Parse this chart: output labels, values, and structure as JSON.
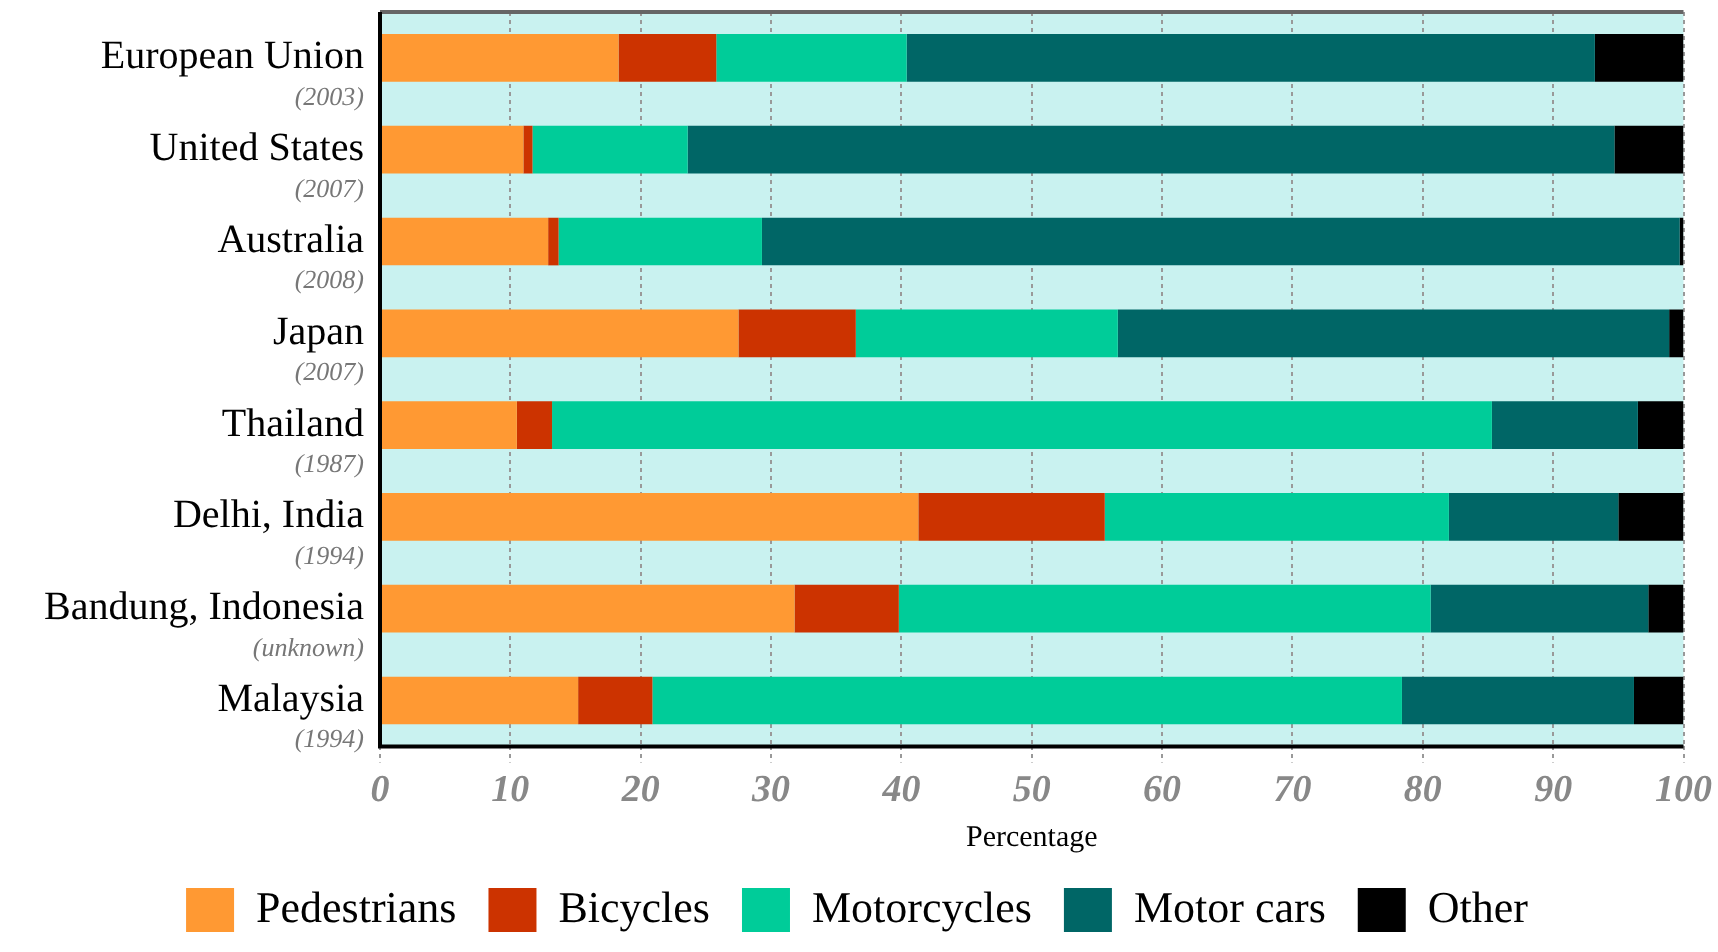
{
  "chart_data": {
    "type": "bar",
    "orientation": "horizontal",
    "stacked": true,
    "xlabel": "Percentage",
    "categories": [
      "European Union\n(2003)",
      "United States\n(2007)",
      "Australia\n(2008)",
      "Japan\n(2007)",
      "Thailand\n(1987)",
      "Delhi, India\n(1994)",
      "Bandung, Indonesia\n(unknown)",
      "Malaysia\n(1994)"
    ],
    "series": [
      {
        "name": "Pedestrians",
        "color": "#ff9933",
        "values": [
          18.3,
          11.0,
          12.9,
          27.5,
          10.5,
          41.3,
          31.8,
          15.2
        ]
      },
      {
        "name": "Bicycles",
        "color": "#cc3300",
        "values": [
          7.5,
          0.7,
          0.8,
          9.0,
          2.7,
          14.3,
          8.0,
          5.7
        ]
      },
      {
        "name": "Motorcycles",
        "color": "#00cc99",
        "values": [
          14.6,
          11.9,
          15.6,
          20.1,
          72.1,
          26.4,
          40.8,
          57.5
        ]
      },
      {
        "name": "Motor cars",
        "color": "#006666",
        "values": [
          52.8,
          71.1,
          70.4,
          42.3,
          11.2,
          13.0,
          16.7,
          17.8
        ]
      },
      {
        "name": "Other",
        "color": "#000000",
        "values": [
          6.8,
          5.3,
          0.3,
          1.1,
          3.5,
          5.0,
          2.7,
          3.8
        ]
      }
    ],
    "xlim": [
      0,
      100
    ],
    "xticks": [
      0,
      10,
      20,
      30,
      40,
      50,
      60,
      70,
      80,
      90,
      100
    ],
    "grid": "x",
    "legend": "bottom"
  }
}
